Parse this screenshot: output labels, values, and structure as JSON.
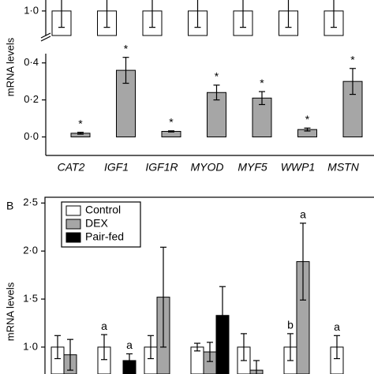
{
  "chart_data": [
    {
      "type": "bar",
      "y_label": "mRNA levels",
      "categories": [
        "CAT2",
        "IGF1",
        "IGF1R",
        "MYOD",
        "MYF5",
        "WWP1",
        "MSTN"
      ],
      "series": [
        {
          "color": "#ffffff",
          "values": [
            1,
            1,
            1,
            1,
            1,
            1,
            1
          ],
          "errors": [
            0.1,
            0.1,
            0.1,
            0.1,
            0.1,
            0.1,
            0.1
          ]
        },
        {
          "color": "#a6a6a6",
          "values": [
            0.02,
            0.36,
            0.03,
            0.24,
            0.21,
            0.04,
            0.3
          ],
          "errors": [
            0.005,
            0.07,
            0.003,
            0.04,
            0.035,
            0.008,
            0.07
          ],
          "annotations": [
            "*",
            "*",
            "*",
            "*",
            "*",
            "*",
            "*"
          ]
        }
      ],
      "ylim": [
        -0.1,
        1.067
      ],
      "axis_break": [
        0.45,
        0.85
      ],
      "yticks": [
        {
          "value": 0,
          "label": "0·0"
        },
        {
          "value": 0.2,
          "label": "0·2"
        },
        {
          "value": 0.4,
          "label": "0·4"
        },
        {
          "value": 1,
          "label": "1·0"
        }
      ]
    },
    {
      "type": "bar",
      "panel_label": "B",
      "y_label": "mRNA levels",
      "categories": [
        null,
        null,
        null,
        null,
        null,
        null,
        null
      ],
      "series": [
        {
          "name": "Control",
          "color": "#ffffff",
          "values": [
            1,
            1,
            1,
            1,
            1,
            1,
            1
          ],
          "errors": [
            0.12,
            0.13,
            0.12,
            0.04,
            0.14,
            0.14,
            0.12
          ],
          "annotations": [
            null,
            "a",
            null,
            null,
            null,
            "b",
            "a"
          ]
        },
        {
          "name": "DEX",
          "color": "#a6a6a6",
          "values": [
            0.92,
            null,
            1.52,
            0.95,
            0.76,
            1.89,
            null
          ],
          "errors": [
            0.16,
            null,
            0.52,
            0.1,
            0.1,
            0.4,
            null
          ],
          "annotations": [
            null,
            null,
            null,
            null,
            null,
            "a",
            null
          ]
        },
        {
          "name": "Pair-fed",
          "color": "#000000",
          "values": [
            null,
            0.86,
            null,
            1.33,
            null,
            null,
            null
          ],
          "errors": [
            null,
            0.07,
            null,
            0.3,
            null,
            null,
            null
          ],
          "annotations": [
            null,
            "a",
            null,
            null,
            null,
            null,
            null
          ]
        }
      ],
      "ylim": [
        0.72,
        2.56
      ],
      "yticks": [
        {
          "value": 1,
          "label": "1·0"
        },
        {
          "value": 1.5,
          "label": "1·5"
        },
        {
          "value": 2,
          "label": "2·0"
        },
        {
          "value": 2.5,
          "label": "2·5"
        }
      ]
    }
  ]
}
